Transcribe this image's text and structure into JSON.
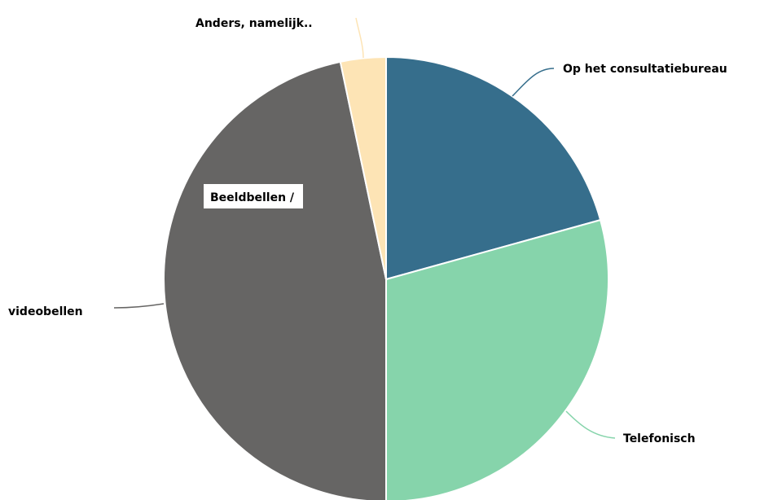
{
  "chart_data": {
    "type": "pie",
    "start_angle_deg": 0,
    "direction": "clockwise",
    "slices": [
      {
        "label": "Op het consultatiebureau",
        "value": 20.7,
        "color": "#366e8c"
      },
      {
        "label": "Telefonisch",
        "value": 29.3,
        "color": "#86d4ab"
      },
      {
        "label": "Beeldbellen / videobellen",
        "value": 46.7,
        "color": "#666564"
      },
      {
        "label": "Anders, namelijk..",
        "value": 3.3,
        "color": "#fde4b5"
      }
    ],
    "title": "",
    "legend": "none"
  },
  "labels": {
    "consultatiebureau": "Op het consultatiebureau",
    "telefonisch": "Telefonisch",
    "beeldbellen": "Beeldbellen /",
    "videobellen": "videobellen",
    "anders": "Anders, namelijk.."
  }
}
